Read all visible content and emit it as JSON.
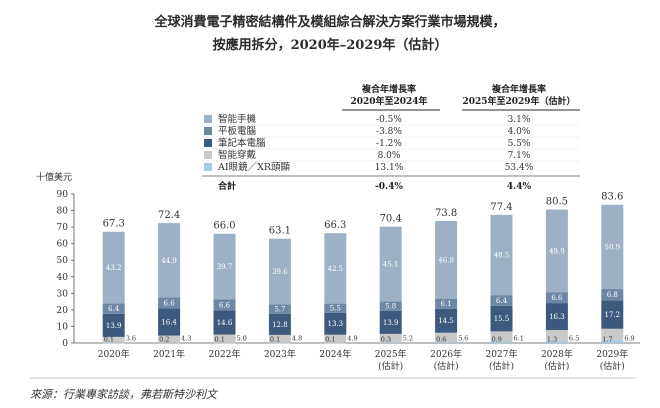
{
  "title_line1": "全球消費電子精密結構件及模組綜合解決方案行業市場規模，",
  "title_line2": "按應用拆分，2020年–2029年（估計）",
  "unit": "十億美元",
  "source": "來源：行業專家訪談，弗若斯特沙利文",
  "cagr_table": {
    "col1_header_line1": "複合年增長率",
    "col1_header_line2": "2020年至2024年",
    "col2_header_line1": "複合年增長率",
    "col2_header_line2": "2025年至2029年（估計）",
    "rows": [
      {
        "label": "智能手機",
        "cagr1": "-0.5%",
        "cagr2": "3.1%",
        "color": "#9db0c6"
      },
      {
        "label": "平板電腦",
        "cagr1": "-3.8%",
        "cagr2": "4.0%",
        "color": "#6d88a6"
      },
      {
        "label": "筆記本電腦",
        "cagr1": "-1.2%",
        "cagr2": "5.5%",
        "color": "#3c5a7e"
      },
      {
        "label": "智能穿戴",
        "cagr1": "8.0%",
        "cagr2": "7.1%",
        "color": "#c9c9c9"
      },
      {
        "label": "AI眼鏡／XR頭顯",
        "cagr1": "13.1%",
        "cagr2": "53.4%",
        "color": "#a9c9e0"
      }
    ],
    "total_label": "合計",
    "total_cagr1": "-0.4%",
    "total_cagr2": "4.4%"
  },
  "chart_data": {
    "type": "bar",
    "stacked": true,
    "categories": [
      "2020年",
      "2021年",
      "2022年",
      "2023年",
      "2024年",
      "2025年",
      "2026年",
      "2027年",
      "2028年",
      "2029年"
    ],
    "category_notes": [
      "",
      "",
      "",
      "",
      "",
      "(估計)",
      "(估計)",
      "(估計)",
      "(估計)",
      "(估計)"
    ],
    "ylabel": "十億美元",
    "ylim": [
      0,
      90
    ],
    "yticks": [
      0,
      10,
      20,
      30,
      40,
      50,
      60,
      70,
      80,
      90
    ],
    "totals": [
      "67.3",
      "72.4",
      "66.0",
      "63.1",
      "66.3",
      "70.4",
      "73.8",
      "77.4",
      "80.5",
      "83.6"
    ],
    "series": [
      {
        "name": "AI眼鏡／XR頭顯",
        "color": "#a9c9e0",
        "values": [
          0.1,
          0.2,
          0.1,
          0.1,
          0.1,
          0.3,
          0.6,
          0.9,
          1.3,
          1.7
        ],
        "labels": [
          "0.1",
          "0.2",
          "0.1",
          "0.1",
          "0.1",
          "0.3",
          "0.6",
          "0.9",
          "1.3",
          "1.7"
        ]
      },
      {
        "name": "智能穿戴",
        "color": "#c9c9c9",
        "values": [
          3.6,
          4.3,
          5.0,
          4.8,
          4.9,
          5.2,
          5.6,
          6.1,
          6.5,
          6.9
        ],
        "labels": [
          "3.6",
          "4.3",
          "5.0",
          "4.8",
          "4.9",
          "5.2",
          "5.6",
          "6.1",
          "6.5",
          "6.9"
        ]
      },
      {
        "name": "筆記本電腦",
        "color": "#3c5a7e",
        "values": [
          13.9,
          16.4,
          14.6,
          12.8,
          13.3,
          13.9,
          14.5,
          15.5,
          16.3,
          17.2
        ],
        "labels": [
          "13.9",
          "16.4",
          "14.6",
          "12.8",
          "13.3",
          "13.9",
          "14.5",
          "15.5",
          "16.3",
          "17.2"
        ]
      },
      {
        "name": "平板電腦",
        "color": "#6d88a6",
        "values": [
          6.4,
          6.6,
          6.6,
          5.7,
          5.5,
          5.8,
          6.1,
          6.4,
          6.6,
          6.8
        ],
        "labels": [
          "6.4",
          "6.6",
          "6.6",
          "5.7",
          "5.5",
          "5.8",
          "6.1",
          "6.4",
          "6.6",
          "6.8"
        ]
      },
      {
        "name": "智能手機",
        "color": "#9db0c6",
        "values": [
          43.2,
          44.9,
          39.7,
          39.6,
          42.5,
          45.1,
          46.9,
          48.5,
          49.9,
          50.9
        ],
        "labels": [
          "43.2",
          "44.9",
          "39.7",
          "39.6",
          "42.5",
          "45.1",
          "46.9",
          "48.5",
          "49.9",
          "50.9"
        ]
      }
    ]
  }
}
